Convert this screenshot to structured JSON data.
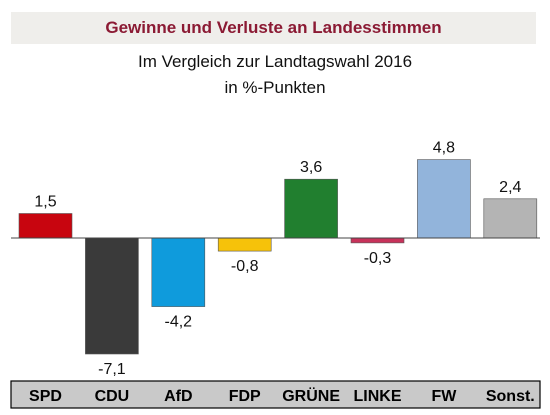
{
  "header": {
    "title": "Gewinne und Verluste an Landesstimmen",
    "subtitle_line1": "Im Vergleich zur Landtagswahl 2016",
    "subtitle_line2": "in %-Punkten"
  },
  "colors": {
    "title_bar_bg": "#efeeeb",
    "title_text": "#8b1a34",
    "category_strip_bg": "#c9c9c9"
  },
  "chart_data": {
    "type": "bar",
    "title": "Gewinne und Verluste an Landesstimmen",
    "subtitle": "Im Vergleich zur Landtagswahl 2016 in %-Punkten",
    "xlabel": "",
    "ylabel": "",
    "ylim": [
      -7.1,
      4.8
    ],
    "grid": false,
    "categories": [
      "SPD",
      "CDU",
      "AfD",
      "FDP",
      "GRÜNE",
      "LINKE",
      "FW",
      "Sonst."
    ],
    "values": [
      1.5,
      -7.1,
      -4.2,
      -0.8,
      3.6,
      -0.3,
      4.8,
      2.4
    ],
    "value_labels": [
      "1,5",
      "-7,1",
      "-4,2",
      "-0,8",
      "3,6",
      "-0,3",
      "4,8",
      "2,4"
    ],
    "bar_colors": [
      "#c8050f",
      "#3a3a3a",
      "#0f9bdc",
      "#f6c20a",
      "#217f2f",
      "#c7325a",
      "#92b4db",
      "#b4b4b4"
    ]
  }
}
